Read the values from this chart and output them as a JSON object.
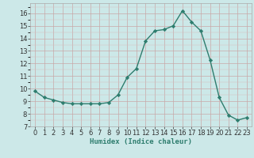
{
  "x": [
    0,
    1,
    2,
    3,
    4,
    5,
    6,
    7,
    8,
    9,
    10,
    11,
    12,
    13,
    14,
    15,
    16,
    17,
    18,
    19,
    20,
    21,
    22,
    23
  ],
  "y": [
    9.8,
    9.3,
    9.1,
    8.9,
    8.8,
    8.8,
    8.8,
    8.8,
    8.9,
    9.5,
    10.9,
    11.6,
    13.8,
    14.6,
    14.7,
    15.0,
    16.2,
    15.3,
    14.6,
    12.3,
    9.3,
    7.9,
    7.5,
    7.7
  ],
  "line_color": "#2e7d6e",
  "marker": "D",
  "markersize": 2.2,
  "linewidth": 1.0,
  "xlabel": "Humidex (Indice chaleur)",
  "xlim": [
    -0.5,
    23.5
  ],
  "ylim": [
    7,
    16.8
  ],
  "yticks": [
    7,
    8,
    9,
    10,
    11,
    12,
    13,
    14,
    15,
    16
  ],
  "xticks": [
    0,
    1,
    2,
    3,
    4,
    5,
    6,
    7,
    8,
    9,
    10,
    11,
    12,
    13,
    14,
    15,
    16,
    17,
    18,
    19,
    20,
    21,
    22,
    23
  ],
  "background_color": "#cce8e8",
  "grid_color_major": "#c8a8a8",
  "grid_color_minor": "#d8bcbc",
  "xlabel_fontsize": 6.5,
  "tick_fontsize": 6.0
}
